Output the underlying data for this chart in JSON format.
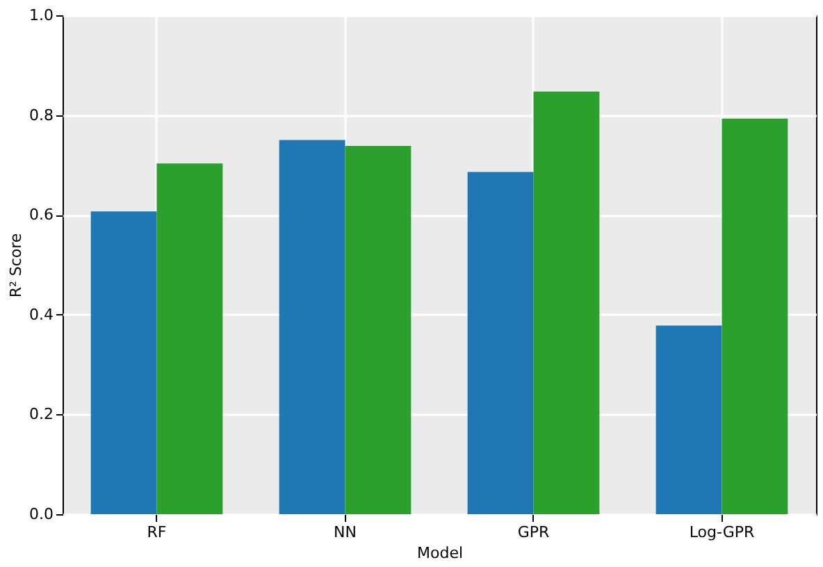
{
  "chart_data": {
    "type": "bar",
    "xlabel": "Model",
    "ylabel": "R² Score",
    "categories": [
      "RF",
      "NN",
      "GPR",
      "Log-GPR"
    ],
    "series": [
      {
        "color": "#1f77b4",
        "values": [
          0.607,
          0.75,
          0.686,
          0.378
        ]
      },
      {
        "color": "#2ca02c",
        "values": [
          0.703,
          0.738,
          0.847,
          0.793
        ]
      }
    ],
    "ylim": [
      0,
      1.0
    ],
    "yticks": [
      {
        "value": 0,
        "label": "0.0"
      },
      0.2,
      0.4,
      0.6,
      0.8,
      {
        "value": 1,
        "label": "1.0"
      }
    ],
    "grid": true,
    "legend": false
  }
}
